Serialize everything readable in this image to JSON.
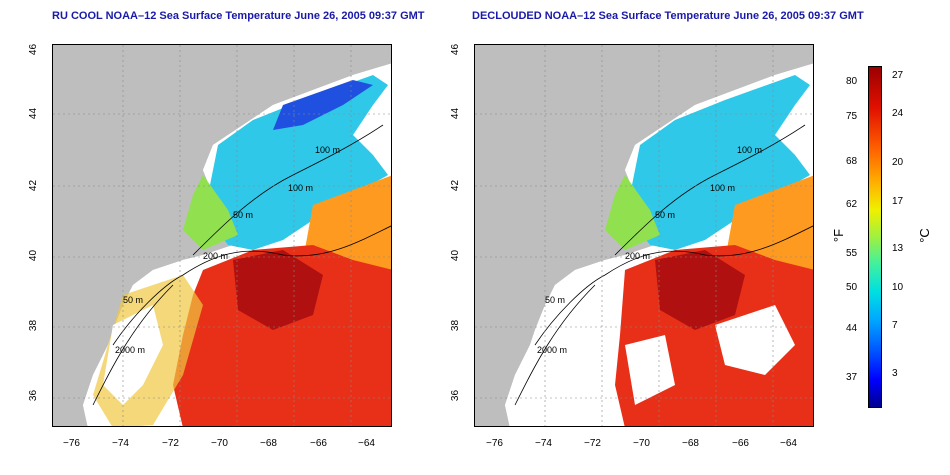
{
  "left_panel": {
    "title": "RU COOL NOAA–12 Sea Surface Temperature June 26, 2005 09:37 GMT",
    "contours": [
      "100 m",
      "100 m",
      "50 m",
      "200 m",
      "50 m",
      "2000 m"
    ]
  },
  "right_panel": {
    "title": "DECLOUDED NOAA–12 Sea Surface Temperature June 26, 2005 09:37 GMT",
    "contours": [
      "100 m",
      "100 m",
      "50 m",
      "200 m",
      "50 m",
      "2000 m"
    ]
  },
  "axes": {
    "lat_ticks": [
      "46",
      "44",
      "42",
      "40",
      "38",
      "36"
    ],
    "lon_ticks": [
      "−76",
      "−74",
      "−72",
      "−70",
      "−68",
      "−66",
      "−64"
    ]
  },
  "colorbar": {
    "fahrenheit_label": "°F",
    "celsius_label": "°C",
    "fahrenheit_ticks": [
      "80",
      "75",
      "68",
      "62",
      "55",
      "50",
      "44",
      "37"
    ],
    "celsius_ticks": [
      "27",
      "24",
      "20",
      "17",
      "13",
      "10",
      "7",
      "3"
    ],
    "colors": {
      "cold": "#00008f",
      "mid": "#f0f000",
      "warm": "#9a0000"
    }
  }
}
